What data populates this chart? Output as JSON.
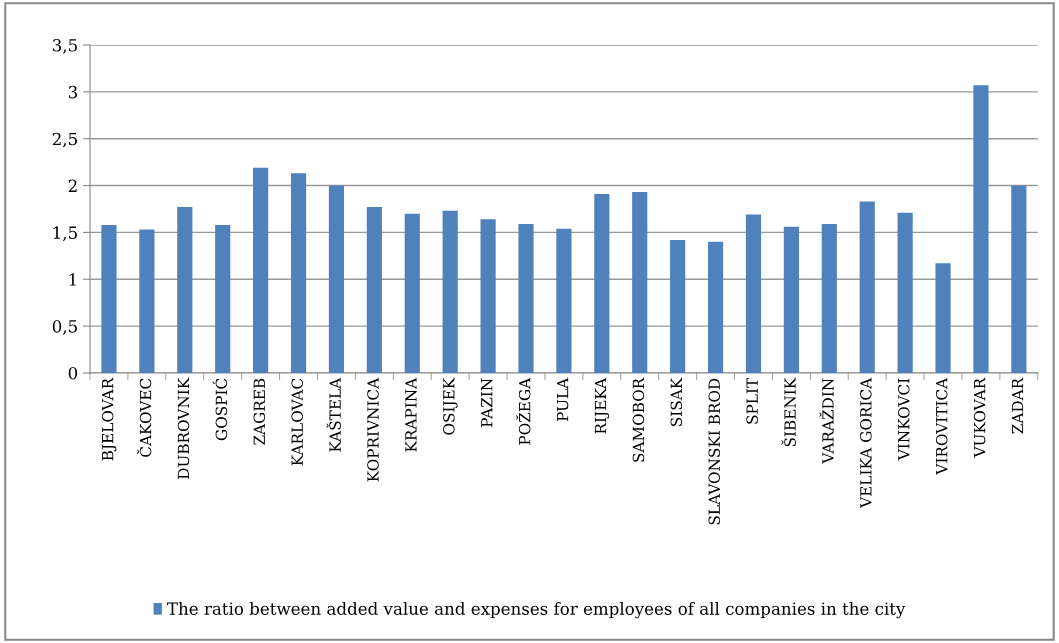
{
  "chart_data": {
    "type": "bar",
    "categories": [
      "BJELOVAR",
      "ČAKOVEC",
      "DUBROVNIK",
      "GOSPIĆ",
      "ZAGREB",
      "KARLOVAC",
      "KAŠTELA",
      "KOPRIVNICA",
      "KRAPINA",
      "OSIJEK",
      "PAZIN",
      "POŽEGA",
      "PULA",
      "RIJEKA",
      "SAMOBOR",
      "SISAK",
      "SLAVONSKI BROD",
      "SPLIT",
      "ŠIBENIK",
      "VARAŽDIN",
      "VELIKA GORICA",
      "VINKOVCI",
      "VIROVITICA",
      "VUKOVAR",
      "ZADAR"
    ],
    "series": [
      {
        "name": "The ratio between added value and expenses for employees of all companies in the city",
        "color": "#4f81bd",
        "values": [
          1.58,
          1.53,
          1.77,
          1.58,
          2.19,
          2.13,
          2.0,
          1.77,
          1.7,
          1.73,
          1.64,
          1.59,
          1.54,
          1.91,
          1.93,
          1.42,
          1.4,
          1.69,
          1.56,
          1.59,
          1.83,
          1.71,
          1.17,
          3.07,
          2.0
        ]
      }
    ],
    "ylim": [
      0,
      3.5
    ],
    "yticks": [
      0,
      {
        "value": 0.5,
        "label": "0,5"
      },
      1,
      {
        "value": 1.5,
        "label": "1,5"
      },
      2,
      {
        "value": 2.5,
        "label": "2,5"
      },
      3,
      {
        "value": 3.5,
        "label": "3,5"
      }
    ],
    "grid": "y",
    "legend": "bottom"
  }
}
